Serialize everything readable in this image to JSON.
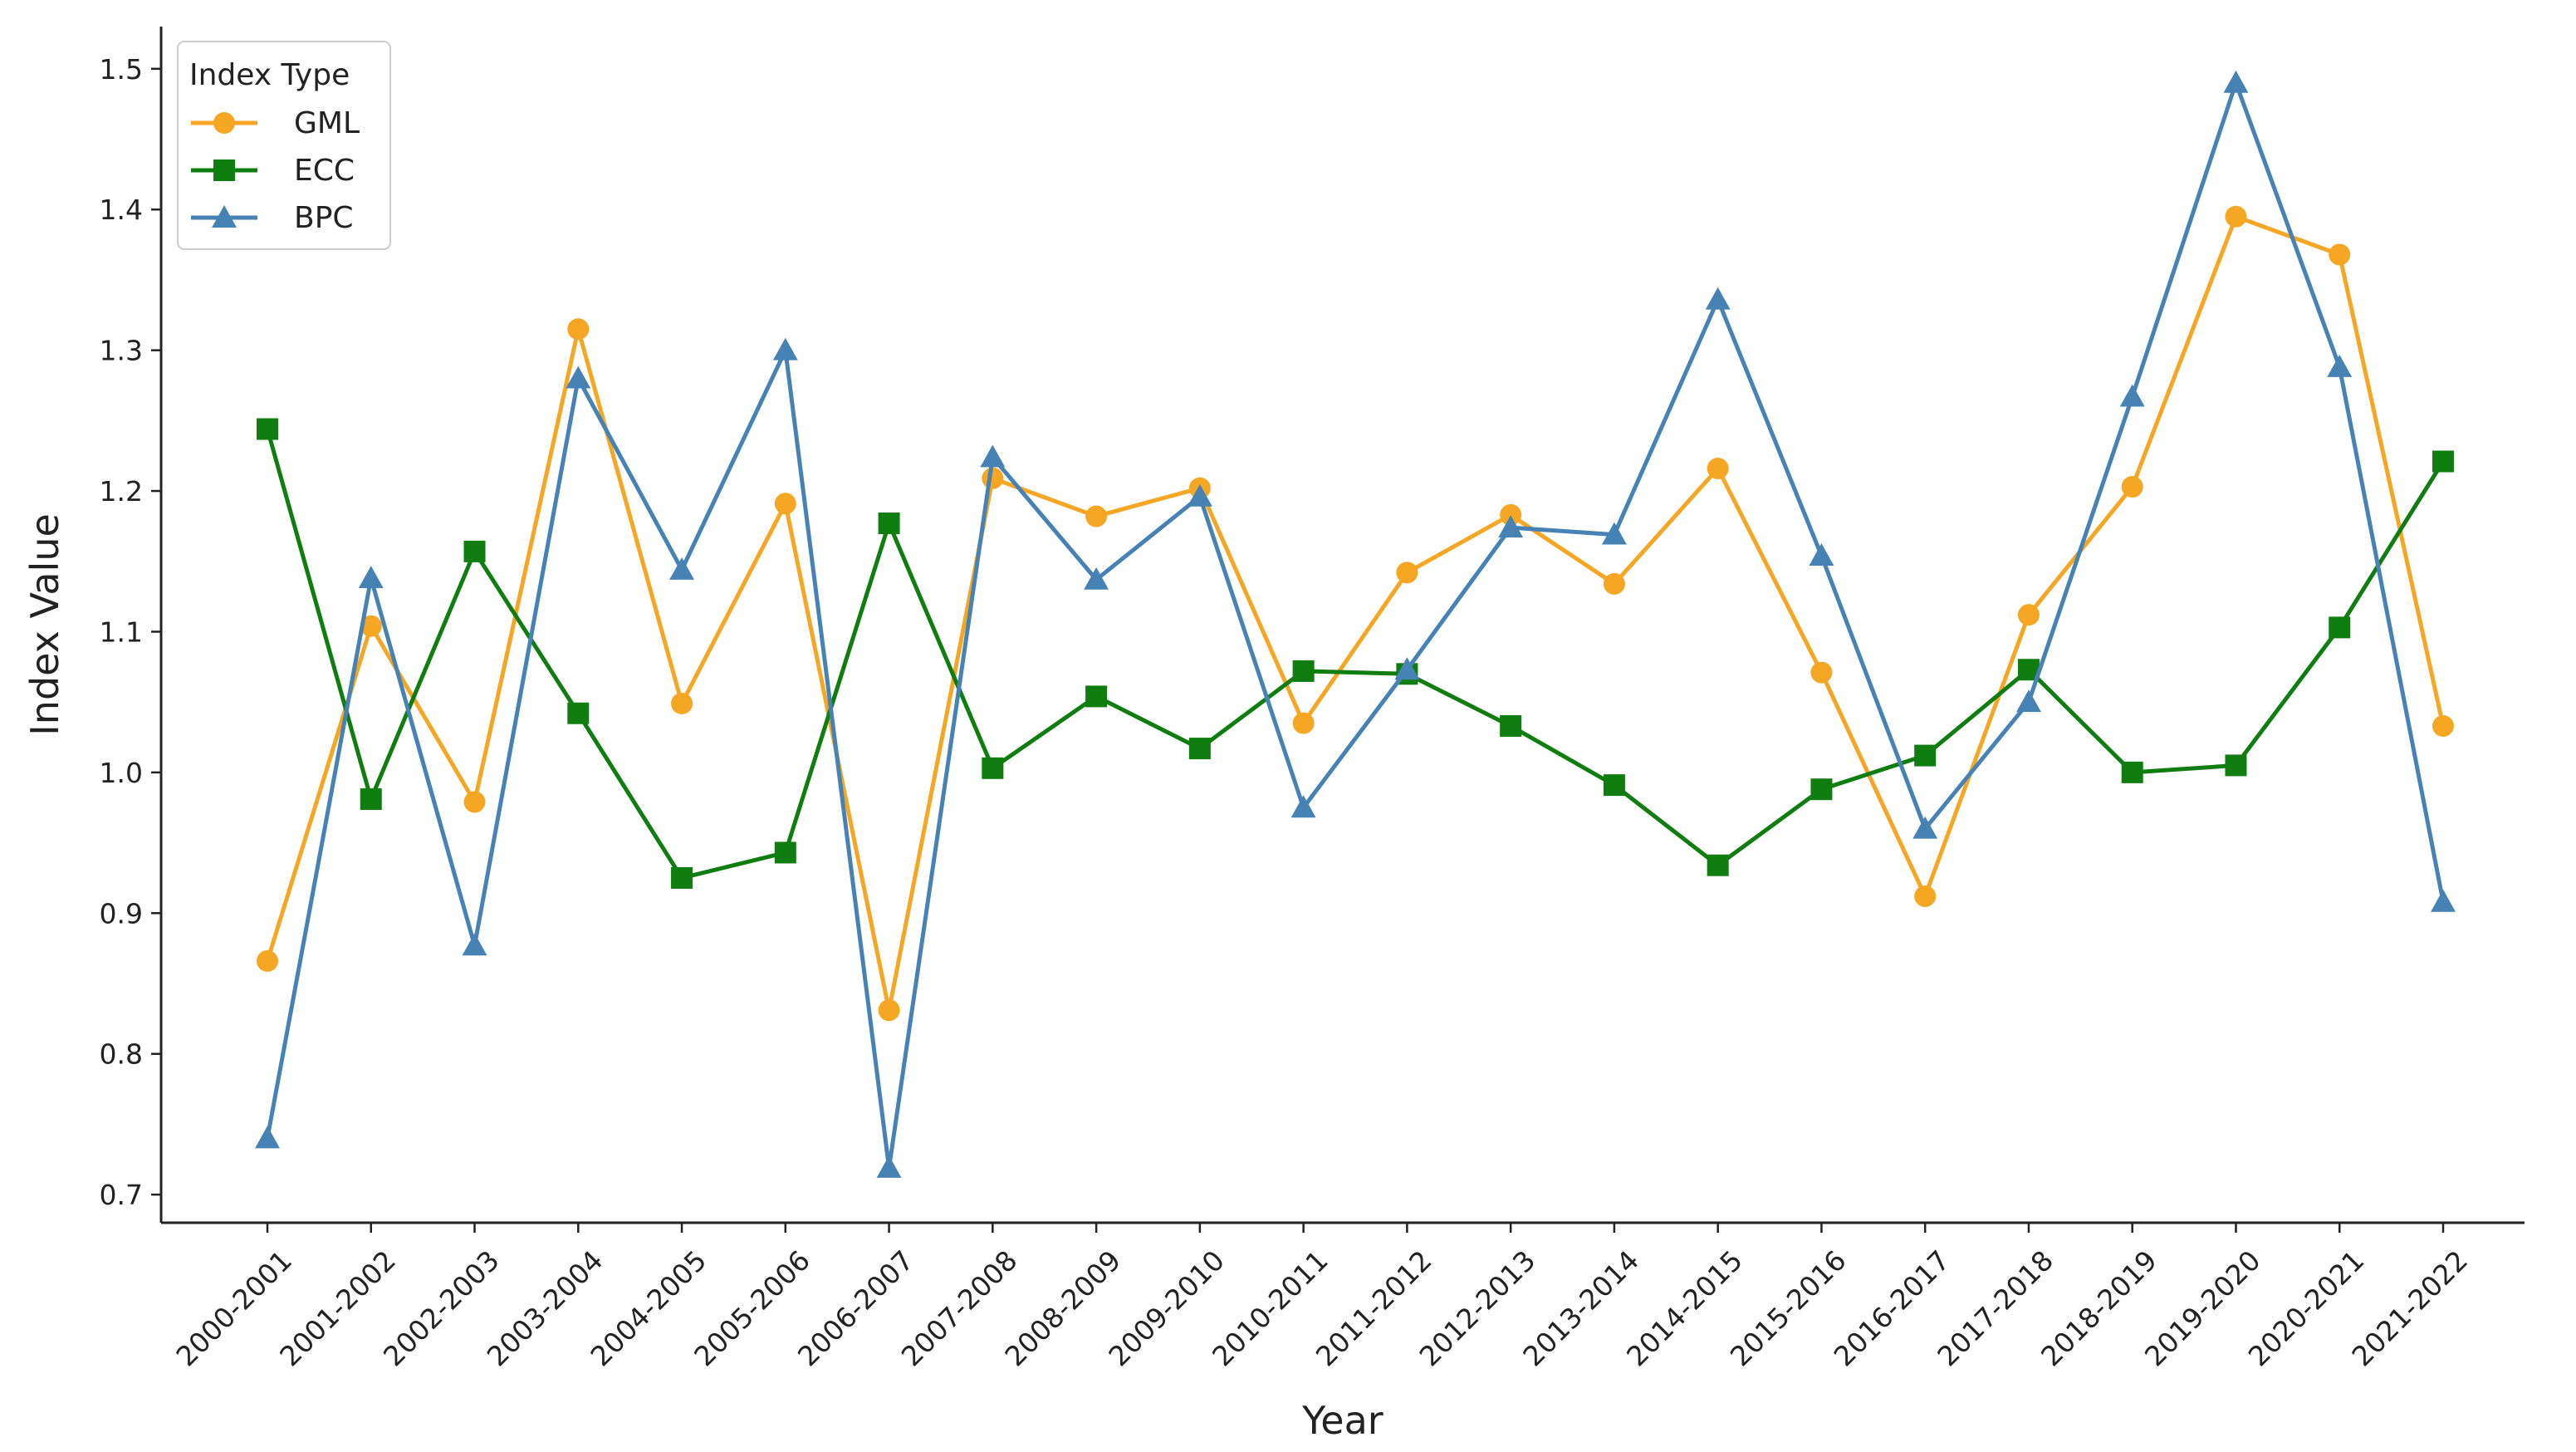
{
  "chart_data": {
    "type": "line",
    "title": "",
    "xlabel": "Year",
    "ylabel": "Index Value",
    "ylim": [
      0.68,
      1.53
    ],
    "yticks": [
      0.7,
      0.8,
      0.9,
      1.0,
      1.1,
      1.2,
      1.3,
      1.4,
      1.5
    ],
    "ytick_labels": [
      "0.7",
      "0.8",
      "0.9",
      "1.0",
      "1.1",
      "1.2",
      "1.3",
      "1.4",
      "1.5"
    ],
    "grid": false,
    "legend": {
      "title": "Index Type",
      "placement": "top-left"
    },
    "categories": [
      "2000-2001",
      "2001-2002",
      "2002-2003",
      "2003-2004",
      "2004-2005",
      "2005-2006",
      "2006-2007",
      "2007-2008",
      "2008-2009",
      "2009-2010",
      "2010-2011",
      "2011-2012",
      "2012-2013",
      "2013-2014",
      "2014-2015",
      "2015-2016",
      "2016-2017",
      "2017-2018",
      "2018-2019",
      "2019-2020",
      "2020-2021",
      "2021-2022"
    ],
    "series": [
      {
        "name": "GML",
        "color": "#f5a623",
        "marker": "circle",
        "values": [
          0.866,
          1.104,
          0.979,
          1.315,
          1.049,
          1.191,
          0.831,
          1.209,
          1.182,
          1.202,
          1.035,
          1.142,
          1.183,
          1.134,
          1.216,
          1.071,
          0.912,
          1.112,
          1.203,
          1.395,
          1.368,
          1.033
        ]
      },
      {
        "name": "ECC",
        "color": "#0f7d0f",
        "marker": "square",
        "values": [
          1.244,
          0.981,
          1.157,
          1.042,
          0.925,
          0.943,
          1.177,
          1.003,
          1.054,
          1.017,
          1.072,
          1.07,
          1.033,
          0.991,
          0.934,
          0.988,
          1.012,
          1.073,
          1.0,
          1.005,
          1.103,
          1.221
        ]
      },
      {
        "name": "BPC",
        "color": "#4682b4",
        "marker": "triangle",
        "values": [
          0.74,
          1.138,
          0.877,
          1.28,
          1.144,
          1.3,
          0.719,
          1.224,
          1.137,
          1.196,
          0.975,
          1.073,
          1.174,
          1.169,
          1.336,
          1.154,
          0.96,
          1.05,
          1.267,
          1.49,
          1.288,
          0.908
        ]
      }
    ]
  }
}
